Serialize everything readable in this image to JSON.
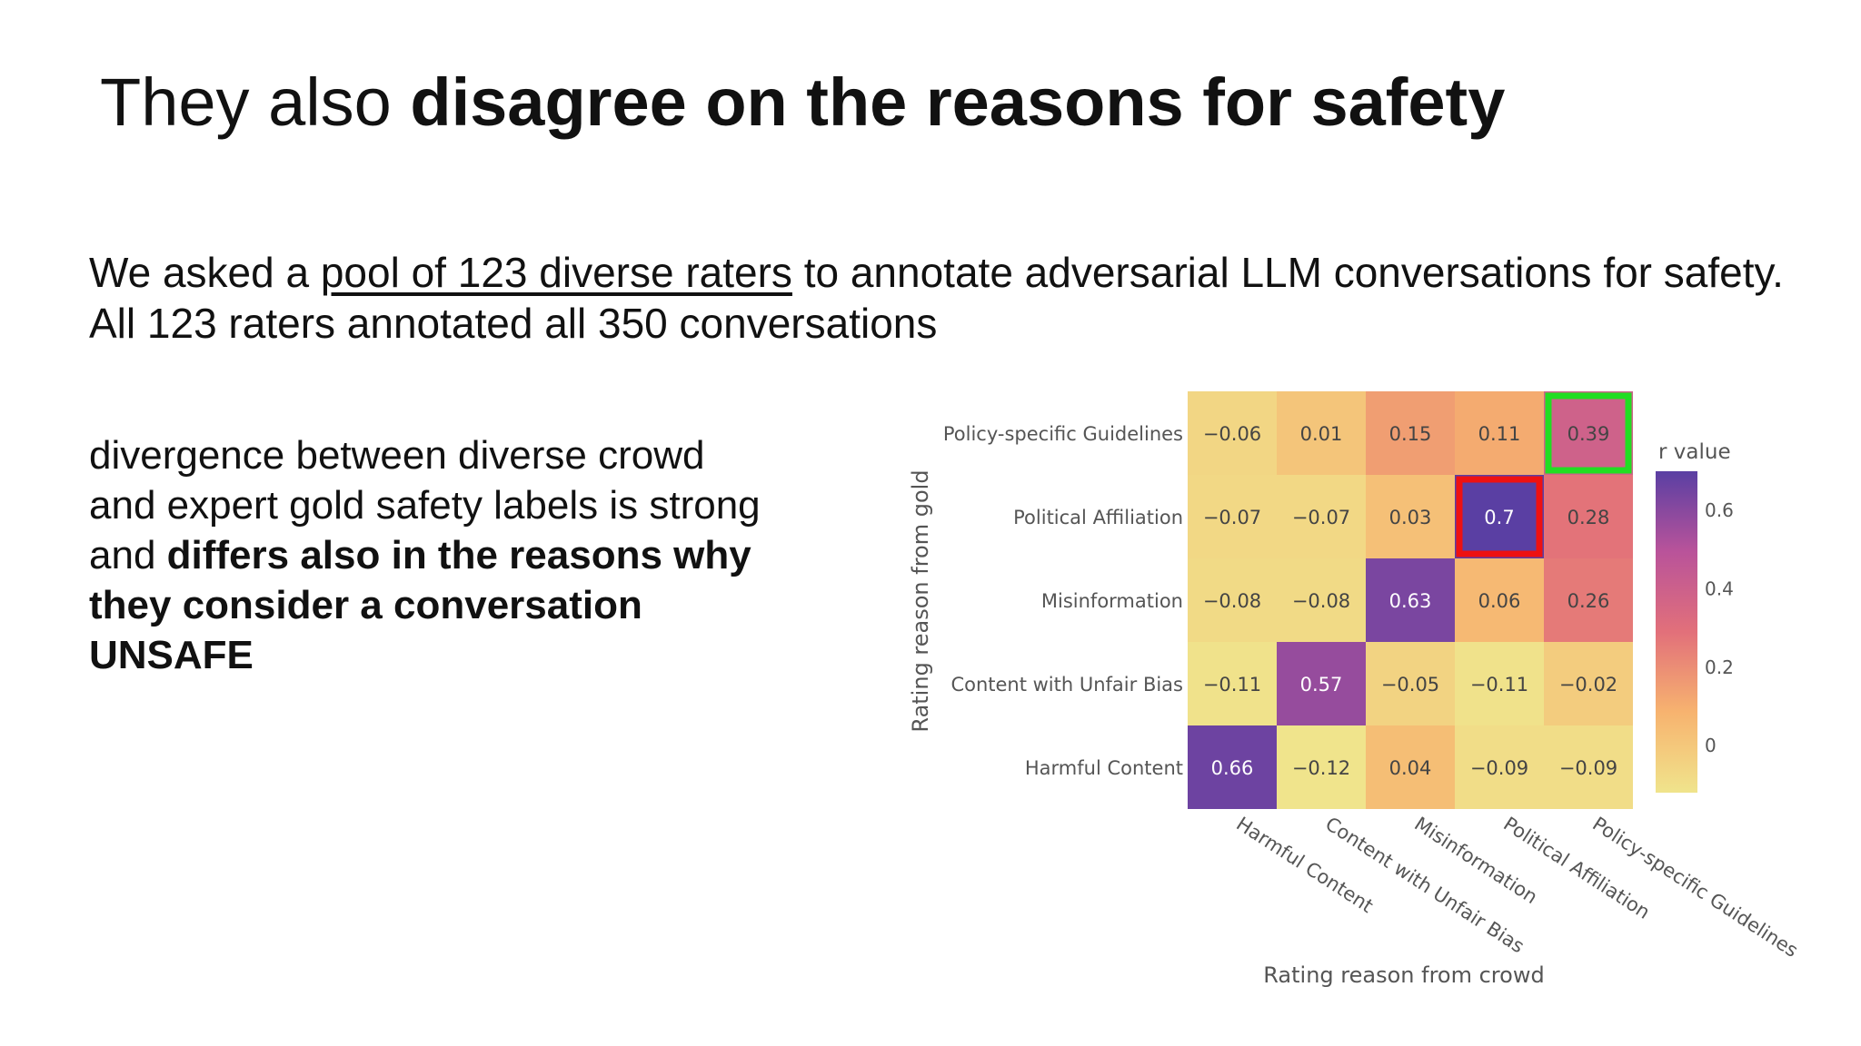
{
  "slide": {
    "title_plain": "They also ",
    "title_bold": "disagree on the reasons for safety",
    "intro_line1_pre": "We asked a ",
    "intro_line1_link": "pool of 123 diverse raters",
    "intro_line1_post": " to annotate adversarial LLM conversations for safety.",
    "intro_line2": "All 123 raters annotated all 350 conversations",
    "side_plain": "divergence between diverse crowd and expert gold safety labels is strong and ",
    "side_bold": "differs also in the reasons why they consider a conversation UNSAFE"
  },
  "chart_data": {
    "type": "heatmap",
    "title": "",
    "xlabel": "Rating reason from crowd",
    "ylabel": "Rating reason from gold",
    "x_categories": [
      "Harmful Content",
      "Content with Unfair Bias",
      "Misinformation",
      "Political Affiliation",
      "Policy-specific Guidelines"
    ],
    "y_categories": [
      "Policy-specific Guidelines",
      "Political Affiliation",
      "Misinformation",
      "Content with Unfair Bias",
      "Harmful Content"
    ],
    "values": [
      [
        -0.06,
        0.01,
        0.15,
        0.11,
        0.39
      ],
      [
        -0.07,
        -0.07,
        0.03,
        0.7,
        0.28
      ],
      [
        -0.08,
        -0.08,
        0.63,
        0.06,
        0.26
      ],
      [
        -0.11,
        0.57,
        -0.05,
        -0.11,
        -0.02
      ],
      [
        0.66,
        -0.12,
        0.04,
        -0.09,
        -0.09
      ]
    ],
    "value_labels": [
      [
        "−0.06",
        "0.01",
        "0.15",
        "0.11",
        "0.39"
      ],
      [
        "−0.07",
        "−0.07",
        "0.03",
        "0.7",
        "0.28"
      ],
      [
        "−0.08",
        "−0.08",
        "0.63",
        "0.06",
        "0.26"
      ],
      [
        "−0.11",
        "0.57",
        "−0.05",
        "−0.11",
        "−0.02"
      ],
      [
        "0.66",
        "−0.12",
        "0.04",
        "−0.09",
        "−0.09"
      ]
    ],
    "colorbar": {
      "title": "r value",
      "range": [
        -0.12,
        0.7
      ],
      "ticks": [
        0,
        0.2,
        0.4,
        0.6
      ],
      "tick_labels": [
        "0",
        "0.2",
        "0.4",
        "0.6"
      ]
    },
    "colorscale": [
      "#f0e48c",
      "#f7b36f",
      "#e2707a",
      "#b9539a",
      "#5a3fa3"
    ],
    "highlights": [
      {
        "row": 0,
        "col": 4,
        "color": "#22dd22"
      },
      {
        "row": 1,
        "col": 3,
        "color": "#ee1111"
      }
    ]
  }
}
